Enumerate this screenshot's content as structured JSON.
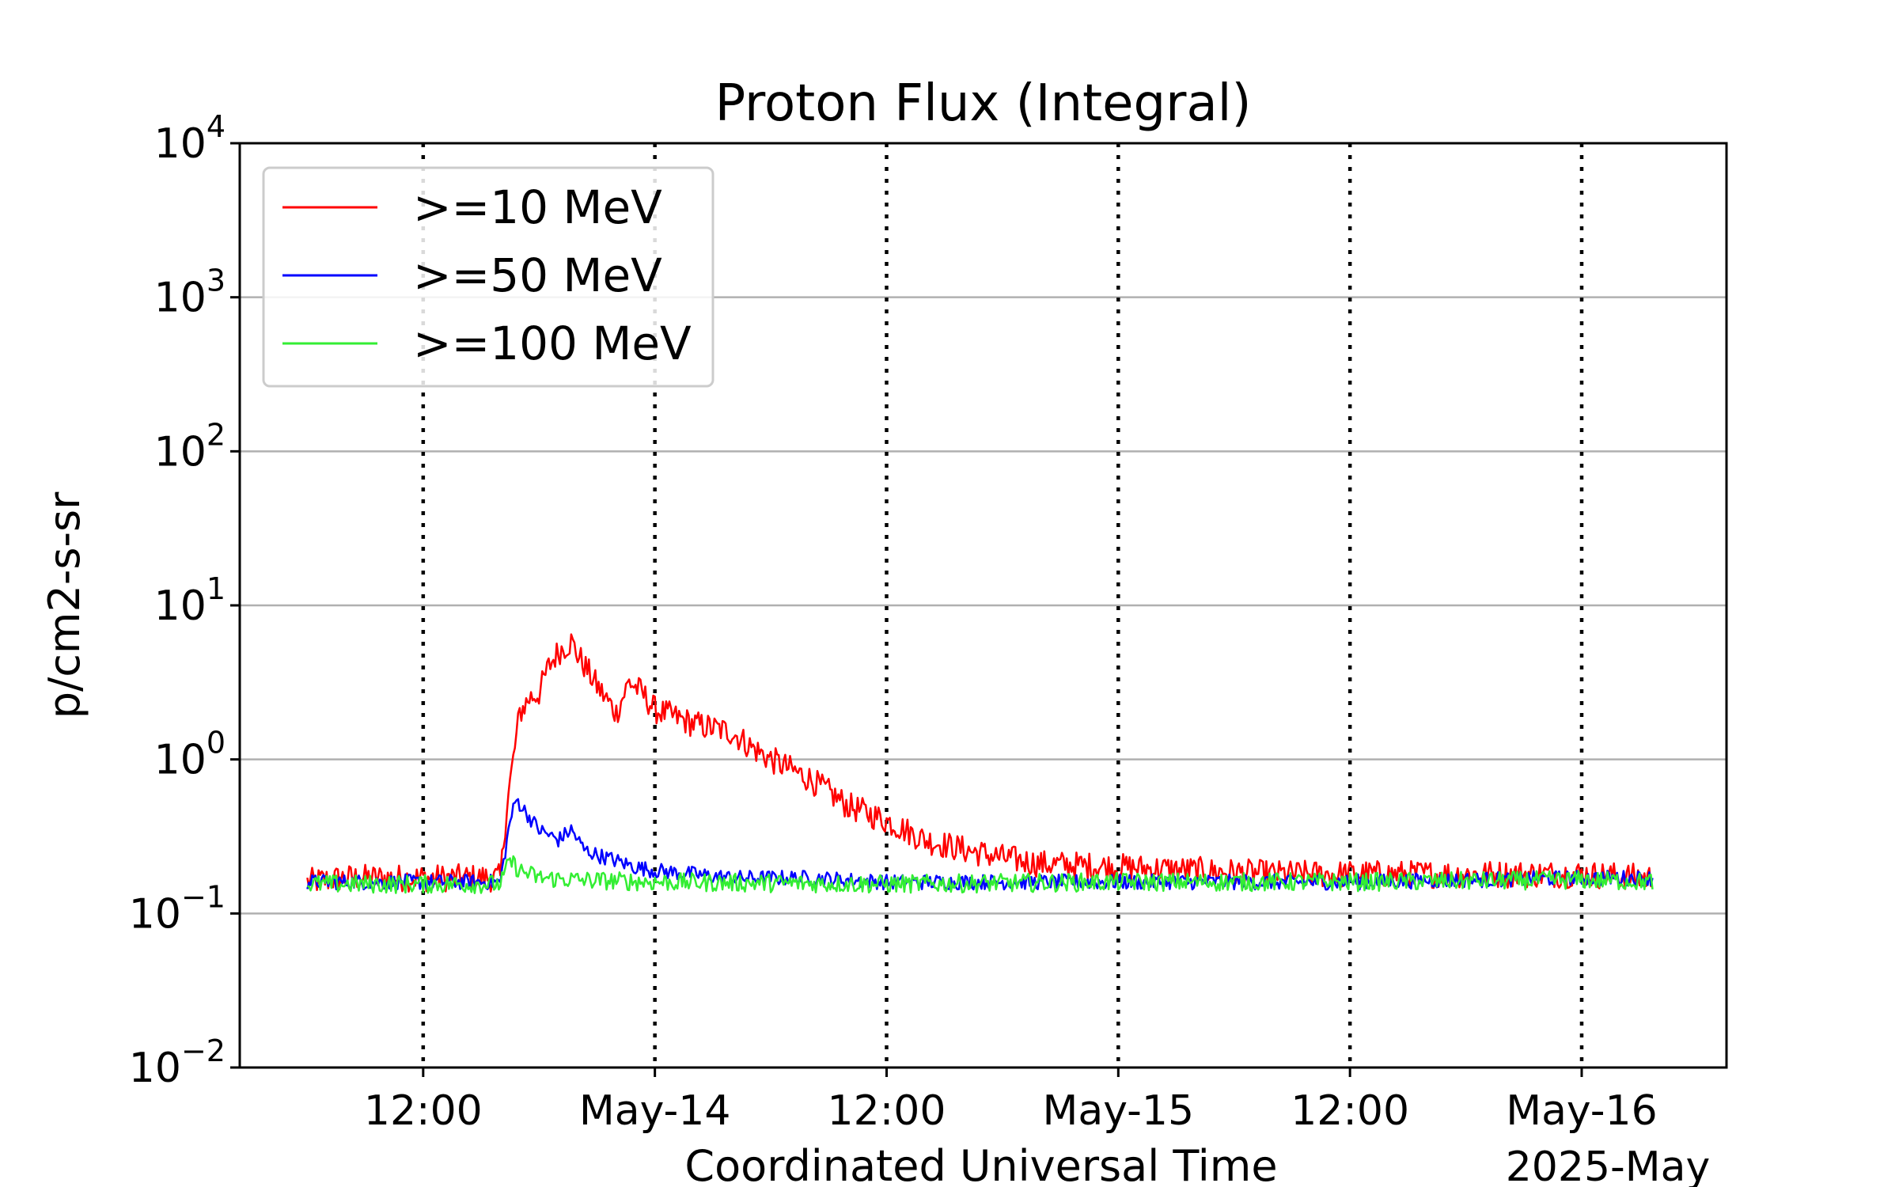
{
  "chart_data": {
    "type": "line",
    "title": "Proton Flux (Integral)",
    "xlabel": "Coordinated Universal Time",
    "ylabel": "p/cm2-s-sr",
    "year_month_label": "2025-May",
    "y_scale": "log",
    "ylim": [
      0.01,
      10000
    ],
    "xlim": [
      "2025-05-13T02:30",
      "2025-05-16T07:30"
    ],
    "y_ticks": [
      {
        "value": 0.01,
        "base": "10",
        "exp": "−2"
      },
      {
        "value": 0.1,
        "base": "10",
        "exp": "−1"
      },
      {
        "value": 1,
        "base": "10",
        "exp": "0"
      },
      {
        "value": 10,
        "base": "10",
        "exp": "1"
      },
      {
        "value": 100,
        "base": "10",
        "exp": "2"
      },
      {
        "value": 1000,
        "base": "10",
        "exp": "3"
      },
      {
        "value": 10000,
        "base": "10",
        "exp": "4"
      }
    ],
    "x_ticks": [
      {
        "time": "2025-05-13T12:00",
        "label": "12:00"
      },
      {
        "time": "2025-05-14T00:00",
        "label": "May-14"
      },
      {
        "time": "2025-05-14T12:00",
        "label": "12:00"
      },
      {
        "time": "2025-05-15T00:00",
        "label": "May-15"
      },
      {
        "time": "2025-05-15T12:00",
        "label": "12:00"
      },
      {
        "time": "2025-05-16T00:00",
        "label": "May-16"
      }
    ],
    "grid": {
      "y_major": true,
      "x_dotted_at_ticks": true
    },
    "legend_position": "top-left",
    "series": [
      {
        "name": ">=10 MeV",
        "color": "#ff0000",
        "points": [
          [
            "2025-05-13T06:00",
            0.16
          ],
          [
            "2025-05-13T08:00",
            0.17
          ],
          [
            "2025-05-13T10:00",
            0.17
          ],
          [
            "2025-05-13T12:00",
            0.17
          ],
          [
            "2025-05-13T14:00",
            0.17
          ],
          [
            "2025-05-13T16:00",
            0.17
          ],
          [
            "2025-05-13T16:20",
            0.5
          ],
          [
            "2025-05-13T16:40",
            1.0
          ],
          [
            "2025-05-13T17:00",
            2.0
          ],
          [
            "2025-05-13T17:30",
            2.5
          ],
          [
            "2025-05-13T18:00",
            2.7
          ],
          [
            "2025-05-13T18:30",
            4.0
          ],
          [
            "2025-05-13T19:00",
            5.0
          ],
          [
            "2025-05-13T19:40",
            5.8
          ],
          [
            "2025-05-13T20:00",
            4.8
          ],
          [
            "2025-05-13T21:00",
            3.0
          ],
          [
            "2025-05-13T22:00",
            2.0
          ],
          [
            "2025-05-13T22:40",
            3.2
          ],
          [
            "2025-05-13T23:20",
            2.7
          ],
          [
            "2025-05-14T00:00",
            2.1
          ],
          [
            "2025-05-14T02:00",
            1.7
          ],
          [
            "2025-05-14T04:00",
            1.5
          ],
          [
            "2025-05-14T05:00",
            1.2
          ],
          [
            "2025-05-14T06:00",
            1.0
          ],
          [
            "2025-05-14T08:00",
            0.75
          ],
          [
            "2025-05-14T10:00",
            0.5
          ],
          [
            "2025-05-14T12:00",
            0.4
          ],
          [
            "2025-05-14T14:00",
            0.3
          ],
          [
            "2025-05-14T16:00",
            0.26
          ],
          [
            "2025-05-14T18:00",
            0.23
          ],
          [
            "2025-05-14T20:00",
            0.21
          ],
          [
            "2025-05-15T00:00",
            0.2
          ],
          [
            "2025-05-15T04:00",
            0.19
          ],
          [
            "2025-05-15T08:00",
            0.18
          ],
          [
            "2025-05-15T12:00",
            0.18
          ],
          [
            "2025-05-15T18:00",
            0.18
          ],
          [
            "2025-05-16T00:00",
            0.18
          ],
          [
            "2025-05-16T03:40",
            0.17
          ]
        ]
      },
      {
        "name": ">=50 MeV",
        "color": "#0000ff",
        "points": [
          [
            "2025-05-13T06:00",
            0.16
          ],
          [
            "2025-05-13T12:00",
            0.16
          ],
          [
            "2025-05-13T16:00",
            0.16
          ],
          [
            "2025-05-13T16:30",
            0.4
          ],
          [
            "2025-05-13T16:50",
            0.55
          ],
          [
            "2025-05-13T17:20",
            0.45
          ],
          [
            "2025-05-13T18:00",
            0.35
          ],
          [
            "2025-05-13T19:00",
            0.3
          ],
          [
            "2025-05-13T19:40",
            0.35
          ],
          [
            "2025-05-13T20:20",
            0.26
          ],
          [
            "2025-05-13T21:00",
            0.24
          ],
          [
            "2025-05-13T22:00",
            0.22
          ],
          [
            "2025-05-13T23:00",
            0.2
          ],
          [
            "2025-05-14T00:00",
            0.19
          ],
          [
            "2025-05-14T02:00",
            0.18
          ],
          [
            "2025-05-14T04:00",
            0.17
          ],
          [
            "2025-05-14T08:00",
            0.17
          ],
          [
            "2025-05-14T12:00",
            0.16
          ],
          [
            "2025-05-14T18:00",
            0.16
          ],
          [
            "2025-05-15T00:00",
            0.16
          ],
          [
            "2025-05-15T12:00",
            0.16
          ],
          [
            "2025-05-16T00:00",
            0.17
          ],
          [
            "2025-05-16T03:40",
            0.17
          ]
        ]
      },
      {
        "name": ">=100 MeV",
        "color": "#33ee33",
        "points": [
          [
            "2025-05-13T06:00",
            0.155
          ],
          [
            "2025-05-13T12:00",
            0.155
          ],
          [
            "2025-05-13T16:00",
            0.155
          ],
          [
            "2025-05-13T16:30",
            0.22
          ],
          [
            "2025-05-13T17:00",
            0.19
          ],
          [
            "2025-05-13T18:00",
            0.17
          ],
          [
            "2025-05-13T20:00",
            0.165
          ],
          [
            "2025-05-14T00:00",
            0.16
          ],
          [
            "2025-05-14T12:00",
            0.155
          ],
          [
            "2025-05-15T00:00",
            0.16
          ],
          [
            "2025-05-15T12:00",
            0.16
          ],
          [
            "2025-05-16T00:00",
            0.165
          ],
          [
            "2025-05-16T03:40",
            0.16
          ]
        ]
      }
    ]
  }
}
